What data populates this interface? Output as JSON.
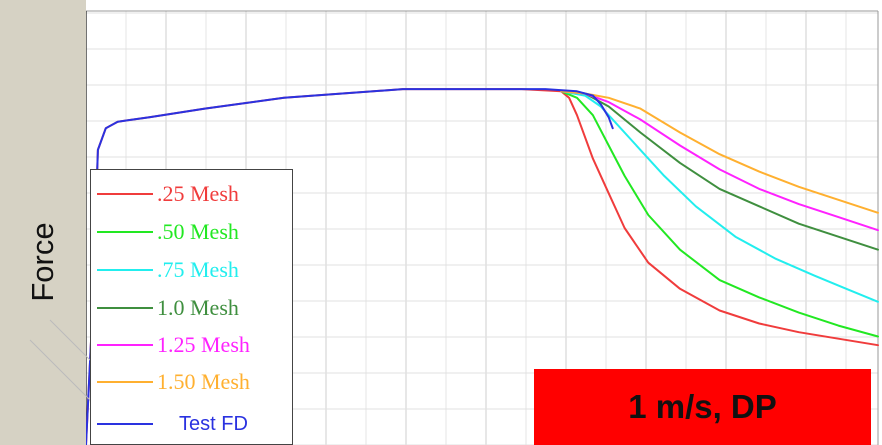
{
  "chart_data": {
    "type": "line",
    "title": "",
    "ylabel": "Force",
    "xlabel": "",
    "xlim": [
      0,
      100
    ],
    "ylim": [
      0,
      100
    ],
    "grid": true,
    "legend_position": "bottom-left",
    "annotation": "1 m/s, DP",
    "series": [
      {
        "name": ".25 Mesh",
        "color": "#f03c3c",
        "x": [
          0,
          0.8,
          1.5,
          2.5,
          4,
          8,
          15,
          25,
          40,
          55,
          60,
          61,
          62,
          64,
          66,
          68,
          71,
          75,
          80,
          85,
          90,
          95,
          100
        ],
        "y": [
          0,
          30,
          68,
          73,
          74.5,
          75.5,
          77.5,
          80,
          82,
          82,
          81.5,
          80,
          76,
          66,
          58,
          50,
          42,
          36,
          31,
          28,
          26,
          24.5,
          23
        ]
      },
      {
        "name": ".50 Mesh",
        "color": "#22e822",
        "x": [
          60,
          62,
          64,
          66,
          68,
          71,
          75,
          80,
          85,
          90,
          95,
          100
        ],
        "y": [
          81.5,
          80,
          76,
          69,
          62,
          53,
          45,
          38,
          34,
          30.5,
          27.5,
          25
        ]
      },
      {
        "name": ".75 Mesh",
        "color": "#22eeee",
        "x": [
          60,
          63,
          65,
          67,
          70,
          73,
          77,
          82,
          87,
          92,
          96,
          100
        ],
        "y": [
          81.5,
          80.5,
          78,
          74,
          68,
          62,
          55,
          48,
          43,
          39,
          36,
          33
        ]
      },
      {
        "name": "1.0 Mesh",
        "color": "#3f8f3f",
        "x": [
          60,
          63,
          66,
          70,
          75,
          80,
          85,
          90,
          95,
          100
        ],
        "y": [
          81.5,
          81,
          78,
          72,
          65,
          59,
          55,
          51,
          48,
          45
        ]
      },
      {
        "name": "1.25 Mesh",
        "color": "#ff22ff",
        "x": [
          60,
          63,
          66,
          70,
          75,
          80,
          85,
          90,
          95,
          100
        ],
        "y": [
          81.5,
          81,
          79,
          75,
          69,
          63.5,
          59,
          55.5,
          52.5,
          49.5
        ]
      },
      {
        "name": "1.50 Mesh",
        "color": "#ffb030",
        "x": [
          60,
          63,
          66,
          70,
          75,
          80,
          85,
          90,
          95,
          100
        ],
        "y": [
          81.5,
          81,
          80,
          77.5,
          72,
          67,
          63,
          59.5,
          56.5,
          53.5
        ]
      },
      {
        "name": "Test FD",
        "color": "#2a32e0",
        "x": [
          0,
          0.8,
          1.5,
          2.5,
          4,
          8,
          15,
          25,
          40,
          55,
          58,
          62,
          64,
          65,
          66,
          66.5
        ],
        "y": [
          0,
          30,
          68,
          73,
          74.5,
          75.5,
          77.5,
          80,
          82,
          82,
          82,
          81.5,
          80.5,
          78.5,
          75.5,
          73
        ]
      }
    ]
  }
}
